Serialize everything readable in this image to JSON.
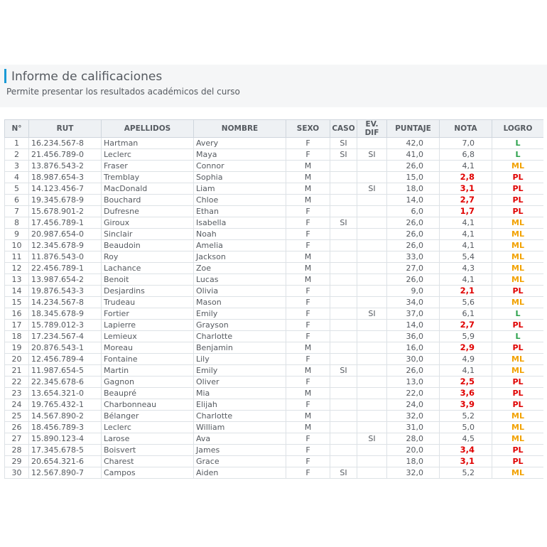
{
  "page": {
    "title": "Informe de calificaciones",
    "subtitle": "Permite presentar los resultados académicos del curso"
  },
  "table": {
    "headers": [
      "N°",
      "RUT",
      "APELLIDOS",
      "NOMBRE",
      "SEXO",
      "CASO",
      "EV. DIF",
      "PUNTAJE",
      "NOTA",
      "LOGRO"
    ],
    "rows": [
      [
        "1",
        "16.234.567-8",
        "Hartman",
        "Avery",
        "F",
        "SI",
        "",
        "42,0",
        "7,0",
        "L"
      ],
      [
        "2",
        "21.456.789-0",
        "Leclerc",
        "Maya",
        "F",
        "SI",
        "SI",
        "41,0",
        "6,8",
        "L"
      ],
      [
        "3",
        "13.876.543-2",
        "Fraser",
        "Connor",
        "M",
        "",
        "",
        "26,0",
        "4,1",
        "ML"
      ],
      [
        "4",
        "18.987.654-3",
        "Tremblay",
        "Sophia",
        "M",
        "",
        "",
        "15,0",
        "2,8",
        "PL"
      ],
      [
        "5",
        "14.123.456-7",
        "MacDonald",
        "Liam",
        "M",
        "",
        "SI",
        "18,0",
        "3,1",
        "PL"
      ],
      [
        "6",
        "19.345.678-9",
        "Bouchard",
        "Chloe",
        "M",
        "",
        "",
        "14,0",
        "2,7",
        "PL"
      ],
      [
        "7",
        "15.678.901-2",
        "Dufresne",
        "Ethan",
        "F",
        "",
        "",
        "6,0",
        "1,7",
        "PL"
      ],
      [
        "8",
        "17.456.789-1",
        "Giroux",
        "Isabella",
        "F",
        "SI",
        "",
        "26,0",
        "4,1",
        "ML"
      ],
      [
        "9",
        "20.987.654-0",
        "Sinclair",
        "Noah",
        "F",
        "",
        "",
        "26,0",
        "4,1",
        "ML"
      ],
      [
        "10",
        "12.345.678-9",
        "Beaudoin",
        "Amelia",
        "F",
        "",
        "",
        "26,0",
        "4,1",
        "ML"
      ],
      [
        "11",
        "11.876.543-0",
        "Roy",
        "Jackson",
        "M",
        "",
        "",
        "33,0",
        "5,4",
        "ML"
      ],
      [
        "12",
        "22.456.789-1",
        "Lachance",
        "Zoe",
        "M",
        "",
        "",
        "27,0",
        "4,3",
        "ML"
      ],
      [
        "13",
        "13.987.654-2",
        "Benoit",
        "Lucas",
        "M",
        "",
        "",
        "26,0",
        "4,1",
        "ML"
      ],
      [
        "14",
        "19.876.543-3",
        "Desjardins",
        "Olivia",
        "F",
        "",
        "",
        "9,0",
        "2,1",
        "PL"
      ],
      [
        "15",
        "14.234.567-8",
        "Trudeau",
        "Mason",
        "F",
        "",
        "",
        "34,0",
        "5,6",
        "ML"
      ],
      [
        "16",
        "18.345.678-9",
        "Fortier",
        "Emily",
        "F",
        "",
        "SI",
        "37,0",
        "6,1",
        "L"
      ],
      [
        "17",
        "15.789.012-3",
        "Lapierre",
        "Grayson",
        "F",
        "",
        "",
        "14,0",
        "2,7",
        "PL"
      ],
      [
        "18",
        "17.234.567-4",
        "Lemieux",
        "Charlotte",
        "F",
        "",
        "",
        "36,0",
        "5,9",
        "L"
      ],
      [
        "19",
        "20.876.543-1",
        "Moreau",
        "Benjamin",
        "M",
        "",
        "",
        "16,0",
        "2,9",
        "PL"
      ],
      [
        "20",
        "12.456.789-4",
        "Fontaine",
        "Lily",
        "F",
        "",
        "",
        "30,0",
        "4,9",
        "ML"
      ],
      [
        "21",
        "11.987.654-5",
        "Martin",
        "Emily",
        "M",
        "SI",
        "",
        "26,0",
        "4,1",
        "ML"
      ],
      [
        "22",
        "22.345.678-6",
        "Gagnon",
        "Oliver",
        "F",
        "",
        "",
        "13,0",
        "2,5",
        "PL"
      ],
      [
        "23",
        "13.654.321-0",
        "Beaupré",
        "Mia",
        "M",
        "",
        "",
        "22,0",
        "3,6",
        "PL"
      ],
      [
        "24",
        "19.765.432-1",
        "Charbonneau",
        "Elijah",
        "F",
        "",
        "",
        "24,0",
        "3,9",
        "PL"
      ],
      [
        "25",
        "14.567.890-2",
        "Bélanger",
        "Charlotte",
        "M",
        "",
        "",
        "32,0",
        "5,2",
        "ML"
      ],
      [
        "26",
        "18.456.789-3",
        "Leclerc",
        "William",
        "M",
        "",
        "",
        "31,0",
        "5,0",
        "ML"
      ],
      [
        "27",
        "15.890.123-4",
        "Larose",
        "Ava",
        "F",
        "",
        "SI",
        "28,0",
        "4,5",
        "ML"
      ],
      [
        "28",
        "17.345.678-5",
        "Boisvert",
        "James",
        "F",
        "",
        "",
        "20,0",
        "3,4",
        "PL"
      ],
      [
        "29",
        "20.654.321-6",
        "Charest",
        "Grace",
        "F",
        "",
        "",
        "18,0",
        "3,1",
        "PL"
      ],
      [
        "30",
        "12.567.890-7",
        "Campos",
        "Aiden",
        "F",
        "SI",
        "",
        "32,0",
        "5,2",
        "ML"
      ]
    ]
  },
  "colors": {
    "accent": "#1a9ad6",
    "fail_grade": "#e00000",
    "logro_L": "#2aa14a",
    "logro_ML": "#f2a200",
    "logro_PL": "#e00000"
  }
}
